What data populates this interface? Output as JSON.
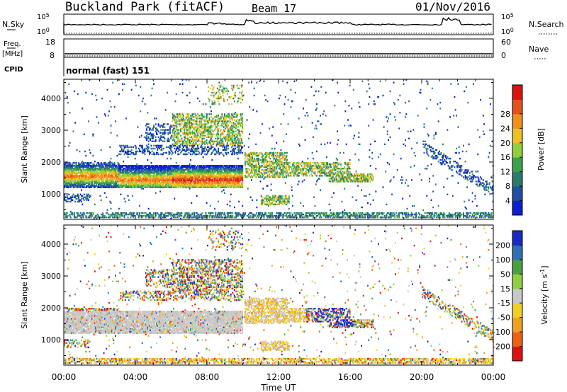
{
  "header": {
    "station": "Buckland Park (fitACF)",
    "beam": "Beam 17",
    "date": "01/Nov/2016"
  },
  "labels": {
    "nsky": "N.Sky",
    "nsearch": "N.Search",
    "freq": "Freq.",
    "mhz": "[MHz]",
    "nave": "Nave",
    "cpid": "CPID",
    "cpid_value": "normal (fast) 151",
    "x_axis": "Time UT"
  },
  "noise_panel": {
    "left_ticks": [
      "10^5",
      "10^0"
    ],
    "right_ticks": [
      "10^5",
      "10^0"
    ]
  },
  "freq_panel": {
    "left_ticks": [
      "18",
      "8"
    ],
    "right_ticks": [
      "60",
      "0"
    ]
  },
  "colors": {
    "power": [
      "#0a1fd6",
      "#1f4fa6",
      "#2a7a6e",
      "#38a34a",
      "#8fd03c",
      "#f0c020",
      "#f0901a",
      "#e8501a",
      "#e01010"
    ],
    "velocity": [
      "#1a28c8",
      "#2f6fb8",
      "#4aa040",
      "#90d040",
      "#c8c8c8",
      "#f0d020",
      "#f0a020",
      "#f06010",
      "#e01010"
    ]
  },
  "chart_data": [
    {
      "type": "heatmap",
      "title": "",
      "xlabel": "Time UT",
      "ylabel": "Slant Range [km]",
      "xlim": [
        "00:00",
        "24:00"
      ],
      "ylim": [
        200,
        4600
      ],
      "x_ticks": [
        "00:00",
        "04:00",
        "08:00",
        "12:00",
        "16:00",
        "20:00",
        "00:00"
      ],
      "y_ticks": [
        1000,
        2000,
        3000,
        4000
      ],
      "colorbar": {
        "label": "Power [dB]",
        "ticks": [
          4,
          8,
          12,
          16,
          20,
          24,
          28
        ]
      }
    },
    {
      "type": "heatmap",
      "title": "",
      "xlabel": "Time UT",
      "ylabel": "Slant Range [km]",
      "xlim": [
        "00:00",
        "24:00"
      ],
      "ylim": [
        200,
        4600
      ],
      "x_ticks": [
        "00:00",
        "04:00",
        "08:00",
        "12:00",
        "16:00",
        "20:00",
        "00:00"
      ],
      "y_ticks": [
        1000,
        2000,
        3000,
        4000
      ],
      "colorbar": {
        "label": "Velocity [m s-1]",
        "ticks": [
          200,
          100,
          50,
          15,
          -15,
          -50,
          -100,
          -200
        ]
      }
    }
  ]
}
